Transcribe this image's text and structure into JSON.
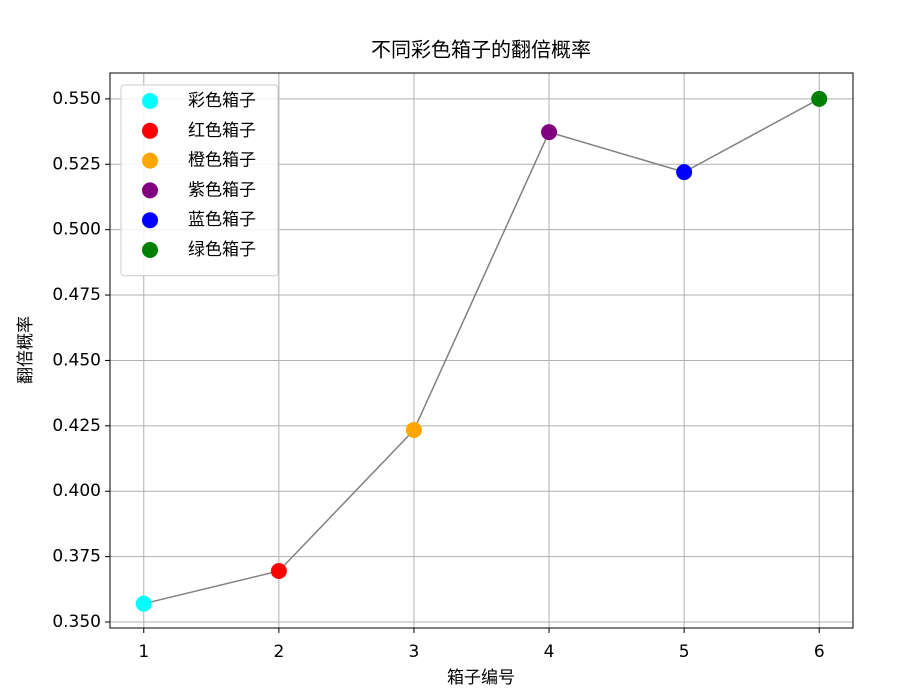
{
  "chart_data": {
    "type": "line",
    "title": "不同彩色箱子的翻倍概率",
    "x_label": "箱子编号",
    "y_label": "翻倍概率",
    "x": [
      1,
      2,
      3,
      4,
      5,
      6
    ],
    "values": [
      0.357,
      0.3695,
      0.4234,
      0.5373,
      0.522,
      0.55
    ],
    "point_names": [
      "彩色箱子",
      "红色箱子",
      "橙色箱子",
      "紫色箱子",
      "蓝色箱子",
      "绿色箱子"
    ],
    "point_colors": [
      "cyan",
      "red",
      "orange",
      "purple",
      "blue",
      "green"
    ],
    "line_color": "gray",
    "xlim": [
      0.75,
      6.25
    ],
    "ylim": [
      0.3477,
      0.5599
    ],
    "xticks": [
      1,
      2,
      3,
      4,
      5,
      6
    ],
    "yticks": [
      {
        "value": 0.35,
        "label": "0.350"
      },
      {
        "value": 0.375,
        "label": "0.375"
      },
      {
        "value": 0.4,
        "label": "0.400"
      },
      {
        "value": 0.425,
        "label": "0.425"
      },
      {
        "value": 0.45,
        "label": "0.450"
      },
      {
        "value": 0.475,
        "label": "0.475"
      },
      {
        "value": 0.5,
        "label": "0.500"
      },
      {
        "value": 0.525,
        "label": "0.525"
      },
      {
        "value": 0.55,
        "label": "0.550"
      }
    ],
    "grid": true,
    "legend": "upper left"
  }
}
